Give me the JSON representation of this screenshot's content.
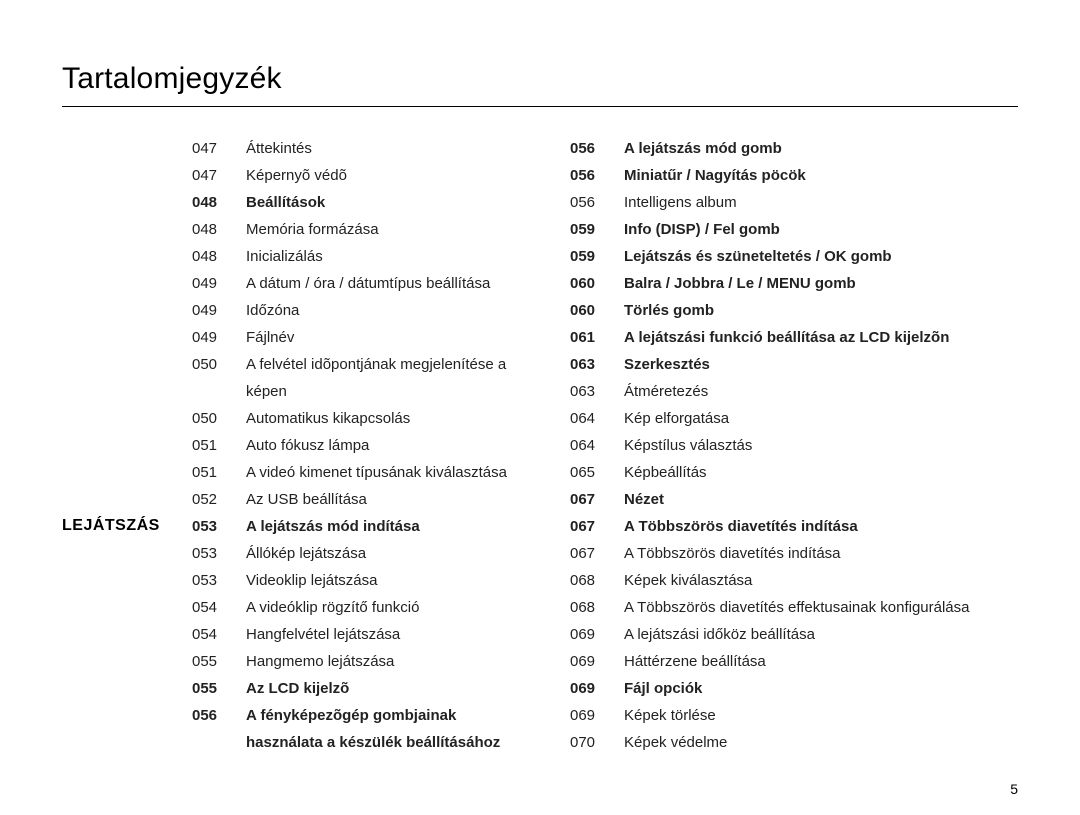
{
  "title": "Tartalomjegyzék",
  "section_label": "LEJÁTSZÁS",
  "page_number": "5",
  "left": [
    {
      "num": "047",
      "text": "Áttekintés",
      "bold": false
    },
    {
      "num": "047",
      "text": "Képernyõ védõ",
      "bold": false
    },
    {
      "num": "048",
      "text": "Beállítások",
      "bold": true
    },
    {
      "num": "048",
      "text": "Memória formázása",
      "bold": false
    },
    {
      "num": "048",
      "text": "Inicializálás",
      "bold": false
    },
    {
      "num": "049",
      "text": "A dátum / óra / dátumtípus beállítása",
      "bold": false
    },
    {
      "num": "049",
      "text": "Időzóna",
      "bold": false
    },
    {
      "num": "049",
      "text": "Fájlnév",
      "bold": false
    },
    {
      "num": "050",
      "text": "A felvétel idõpontjának megjelenítése a képen",
      "bold": false
    },
    {
      "num": "050",
      "text": "Automatikus kikapcsolás",
      "bold": false
    },
    {
      "num": "051",
      "text": "Auto fókusz lámpa",
      "bold": false
    },
    {
      "num": "051",
      "text": "A videó kimenet típusának kiválasztása",
      "bold": false
    },
    {
      "num": "052",
      "text": "Az USB beállítása",
      "bold": false
    },
    {
      "num": "",
      "text": "",
      "bold": false
    },
    {
      "num": "053",
      "text": "A lejátszás mód indítása",
      "bold": true
    },
    {
      "num": "053",
      "text": "Állókép lejátszása",
      "bold": false
    },
    {
      "num": "053",
      "text": "Videoklip lejátszása",
      "bold": false
    },
    {
      "num": "054",
      "text": "A videóklip rögzítő funkció",
      "bold": false
    },
    {
      "num": "054",
      "text": "Hangfelvétel lejátszása",
      "bold": false
    },
    {
      "num": "055",
      "text": "Hangmemo lejátszása",
      "bold": false
    },
    {
      "num": "055",
      "text": "Az LCD kijelzõ",
      "bold": true
    },
    {
      "num": "056",
      "text": "A fényképezõgép gombjainak használata a készülék beállításához",
      "bold": true
    }
  ],
  "right": [
    {
      "num": "056",
      "text": "A lejátszás mód gomb",
      "bold": true
    },
    {
      "num": "056",
      "text": "Miniatűr / Nagyítás pöcök",
      "bold": true
    },
    {
      "num": "056",
      "text": "Intelligens album",
      "bold": false
    },
    {
      "num": "059",
      "text": "Info (DISP) / Fel gomb",
      "bold": true
    },
    {
      "num": "059",
      "text": "Lejátszás és szüneteltetés / OK gomb",
      "bold": true
    },
    {
      "num": "060",
      "text": "Balra / Jobbra / Le / MENU gomb",
      "bold": true
    },
    {
      "num": "060",
      "text": "Törlés gomb",
      "bold": true
    },
    {
      "num": "061",
      "text": "A lejátszási funkció beállítása az LCD kijelzõn",
      "bold": true
    },
    {
      "num": "063",
      "text": "Szerkesztés",
      "bold": true
    },
    {
      "num": "063",
      "text": "Átméretezés",
      "bold": false
    },
    {
      "num": "064",
      "text": "Kép elforgatása",
      "bold": false
    },
    {
      "num": "064",
      "text": "Képstílus választás",
      "bold": false
    },
    {
      "num": "065",
      "text": "Képbeállítás",
      "bold": false
    },
    {
      "num": "067",
      "text": "Nézet",
      "bold": true
    },
    {
      "num": "067",
      "text": "A Többszörös diavetítés indítása",
      "bold": true
    },
    {
      "num": "067",
      "text": "A Többszörös diavetítés indítása",
      "bold": false
    },
    {
      "num": "068",
      "text": "Képek kiválasztása",
      "bold": false
    },
    {
      "num": "068",
      "text": "A Többszörös diavetítés effektusainak konfigurálása",
      "bold": false
    },
    {
      "num": "069",
      "text": "A lejátszási időköz beállítása",
      "bold": false
    },
    {
      "num": "069",
      "text": "Háttérzene beállítása",
      "bold": false
    },
    {
      "num": "069",
      "text": "Fájl opciók",
      "bold": true
    },
    {
      "num": "069",
      "text": "Képek törlése",
      "bold": false
    },
    {
      "num": "070",
      "text": "Képek védelme",
      "bold": false
    }
  ]
}
